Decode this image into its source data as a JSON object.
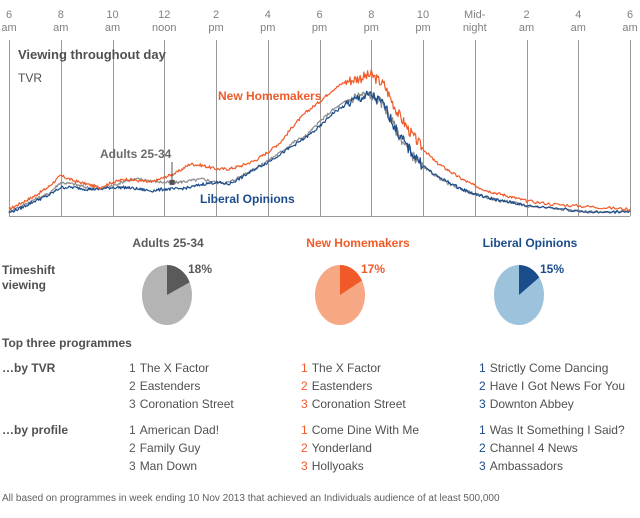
{
  "chart_data": [
    {
      "type": "line",
      "title": "Viewing throughout day",
      "subtitle": "TVR",
      "xlabel": "",
      "ylabel": "TVR",
      "grid": true,
      "x_ticks": [
        {
          "line1": "6",
          "line2": "am"
        },
        {
          "line1": "8",
          "line2": "am"
        },
        {
          "line1": "10",
          "line2": "am"
        },
        {
          "line1": "12",
          "line2": "noon"
        },
        {
          "line1": "2",
          "line2": "pm"
        },
        {
          "line1": "4",
          "line2": "pm"
        },
        {
          "line1": "6",
          "line2": "pm"
        },
        {
          "line1": "8",
          "line2": "pm"
        },
        {
          "line1": "10",
          "line2": "pm"
        },
        {
          "line1": "Mid-",
          "line2": "night"
        },
        {
          "line1": "2",
          "line2": "am"
        },
        {
          "line1": "4",
          "line2": "am"
        },
        {
          "line1": "6",
          "line2": "am"
        }
      ],
      "x_unit": "hours after 6am",
      "xlim": [
        0,
        24
      ],
      "ylim": [
        0,
        100
      ],
      "x": [
        0,
        0.5,
        1,
        1.5,
        2,
        2.5,
        3,
        3.5,
        4,
        4.5,
        5,
        5.5,
        6,
        6.5,
        7,
        7.5,
        8,
        8.5,
        9,
        9.5,
        10,
        10.5,
        11,
        11.5,
        12,
        12.5,
        13,
        13.5,
        14,
        14.5,
        15,
        15.5,
        16,
        16.5,
        17,
        17.5,
        18,
        18.5,
        19,
        19.5,
        20,
        21,
        22,
        23,
        24
      ],
      "series": [
        {
          "name": "New Homemakers",
          "color": "#f05a28",
          "values": [
            4,
            8,
            12,
            17,
            24,
            21,
            19,
            17,
            20,
            22,
            21,
            20,
            23,
            26,
            31,
            30,
            28,
            28,
            30,
            33,
            38,
            44,
            54,
            62,
            68,
            75,
            80,
            82,
            84,
            78,
            62,
            50,
            40,
            32,
            27,
            22,
            18,
            15,
            13,
            11,
            9,
            7,
            6,
            5,
            4
          ]
        },
        {
          "name": "Adults 25-34",
          "color": "#8c8c8c",
          "values": [
            3,
            6,
            10,
            13,
            20,
            19,
            17,
            16,
            18,
            21,
            22,
            21,
            20,
            20,
            21,
            22,
            20,
            20,
            24,
            28,
            33,
            38,
            44,
            48,
            56,
            63,
            68,
            72,
            72,
            66,
            50,
            38,
            29,
            24,
            19,
            16,
            13,
            11,
            9,
            8,
            6,
            5,
            3,
            2,
            3
          ]
        },
        {
          "name": "Liberal Opinions",
          "color": "#1b4c8c",
          "values": [
            2,
            5,
            9,
            12,
            17,
            17,
            16,
            16,
            17,
            17,
            16,
            15,
            16,
            16,
            17,
            19,
            20,
            19,
            23,
            28,
            32,
            37,
            42,
            47,
            53,
            61,
            66,
            70,
            72,
            66,
            50,
            39,
            30,
            24,
            20,
            16,
            13,
            11,
            9,
            8,
            6,
            5,
            3,
            2,
            3
          ]
        }
      ],
      "annotations": [
        {
          "text": "New Homemakers",
          "series": "New Homemakers"
        },
        {
          "text": "Adults 25-34",
          "series": "Adults 25-34",
          "marker_at_x": 6.3
        },
        {
          "text": "Liberal Opinions",
          "series": "Liberal Opinions"
        }
      ]
    },
    {
      "type": "pie",
      "title": "Timeshift viewing",
      "series": [
        {
          "name": "Adults 25-34",
          "value": 18,
          "label": "18%",
          "color": "#5a5a5a",
          "rest_color": "#b4b4b4"
        },
        {
          "name": "New Homemakers",
          "value": 17,
          "label": "17%",
          "color": "#f05a28",
          "rest_color": "#f6a885"
        },
        {
          "name": "Liberal Opinions",
          "value": 15,
          "label": "15%",
          "color": "#1b4c8c",
          "rest_color": "#9dc3dc"
        }
      ]
    }
  ],
  "colors": {
    "adults": "#5a5a5a",
    "homemakers": "#f05a28",
    "liberal": "#1b4c8c",
    "text": "#505050",
    "grid": "#999999"
  },
  "chart": {
    "title": "Viewing throughout day",
    "subtitle": "TVR",
    "label_homemakers": "New Homemakers",
    "label_adults": "Adults 25-34",
    "label_liberal": "Liberal Opinions"
  },
  "columns": [
    {
      "name": "Adults 25-34",
      "timeshift": "18%"
    },
    {
      "name": "New Homemakers",
      "timeshift": "17%"
    },
    {
      "name": "Liberal Opinions",
      "timeshift": "15%"
    }
  ],
  "timeshift": {
    "label_line1": "Timeshift",
    "label_line2": "viewing"
  },
  "top_programmes": {
    "title": "Top three programmes",
    "by_tvr_label": "…by TVR",
    "by_profile_label": "…by profile",
    "by_tvr": [
      [
        {
          "rank": "1",
          "name": "The X Factor"
        },
        {
          "rank": "2",
          "name": "Eastenders"
        },
        {
          "rank": "3",
          "name": "Coronation Street"
        }
      ],
      [
        {
          "rank": "1",
          "name": "The X Factor"
        },
        {
          "rank": "2",
          "name": "Eastenders"
        },
        {
          "rank": "3",
          "name": "Coronation Street"
        }
      ],
      [
        {
          "rank": "1",
          "name": "Strictly Come Dancing"
        },
        {
          "rank": "2",
          "name": "Have I Got News For You"
        },
        {
          "rank": "3",
          "name": "Downton Abbey"
        }
      ]
    ],
    "by_profile": [
      [
        {
          "rank": "1",
          "name": "American Dad!"
        },
        {
          "rank": "2",
          "name": "Family Guy"
        },
        {
          "rank": "3",
          "name": "Man Down"
        }
      ],
      [
        {
          "rank": "1",
          "name": "Come Dine With Me"
        },
        {
          "rank": "2",
          "name": "Yonderland"
        },
        {
          "rank": "3",
          "name": "Hollyoaks"
        }
      ],
      [
        {
          "rank": "1",
          "name": "Was It Something I Said?"
        },
        {
          "rank": "2",
          "name": "Channel 4 News"
        },
        {
          "rank": "3",
          "name": "Ambassadors"
        }
      ]
    ]
  },
  "footnote": "All based on programmes in week ending 10 Nov 2013 that achieved an Individuals audience of at least 500,000"
}
